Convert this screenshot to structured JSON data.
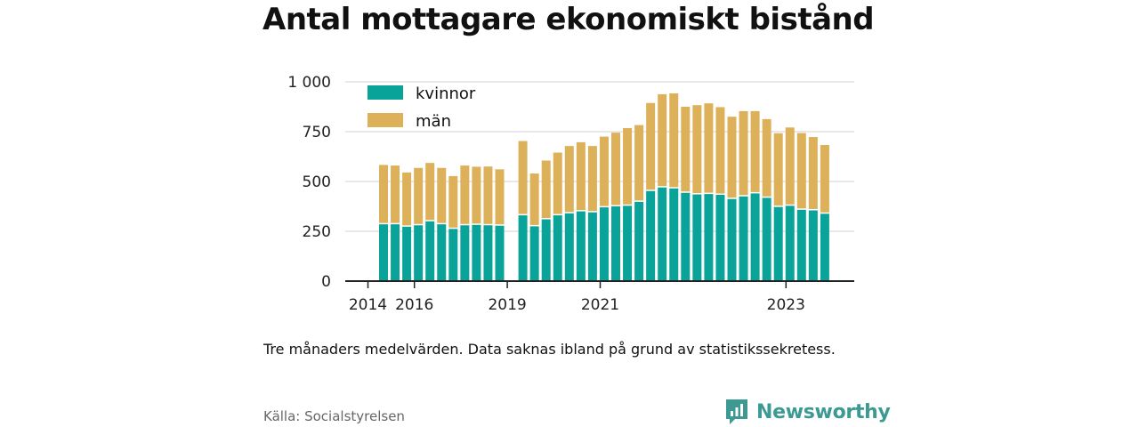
{
  "title": "Antal mottagare ekonomiskt bistånd",
  "note": "Tre månaders medelvärden. Data saknas ibland på grund av statistikssekretess.",
  "source": "Källa: Socialstyrelsen",
  "brand": {
    "name": "Newsworthy",
    "icon": "newsworthy-logo-icon",
    "color": "#3c9a93"
  },
  "colors": {
    "kvinnor": "#0aa39a",
    "man": "#ddb15a",
    "grid": "#d9d9d9",
    "axis": "#222222"
  },
  "chart_data": {
    "type": "bar",
    "stacked": true,
    "ylim": [
      0,
      1000
    ],
    "yticks": [
      0,
      250,
      500,
      750,
      1000
    ],
    "ytick_labels": [
      "0",
      "250",
      "500",
      "750",
      "1 000"
    ],
    "xticks": [
      "2014",
      "2016",
      "2019",
      "2021",
      "2023"
    ],
    "grid": true,
    "legend_position": "top-left",
    "series": [
      {
        "name": "kvinnor",
        "values": [
          285,
          285,
          273,
          280,
          300,
          285,
          262,
          280,
          282,
          280,
          278,
          null,
          330,
          275,
          310,
          330,
          340,
          350,
          345,
          370,
          375,
          378,
          398,
          452,
          470,
          465,
          443,
          435,
          437,
          433,
          412,
          425,
          440,
          418,
          372,
          378,
          358,
          355,
          338
        ]
      },
      {
        "name": "män",
        "values": [
          298,
          295,
          272,
          288,
          293,
          283,
          265,
          300,
          292,
          295,
          283,
          null,
          373,
          265,
          295,
          315,
          338,
          347,
          333,
          355,
          370,
          390,
          385,
          442,
          468,
          477,
          432,
          448,
          455,
          440,
          413,
          428,
          413,
          395,
          370,
          393,
          385,
          368,
          345
        ]
      }
    ],
    "year_positions": {
      "2014": 0,
      "2016": 4,
      "2019": 12,
      "2021": 20,
      "2023": 36
    }
  }
}
